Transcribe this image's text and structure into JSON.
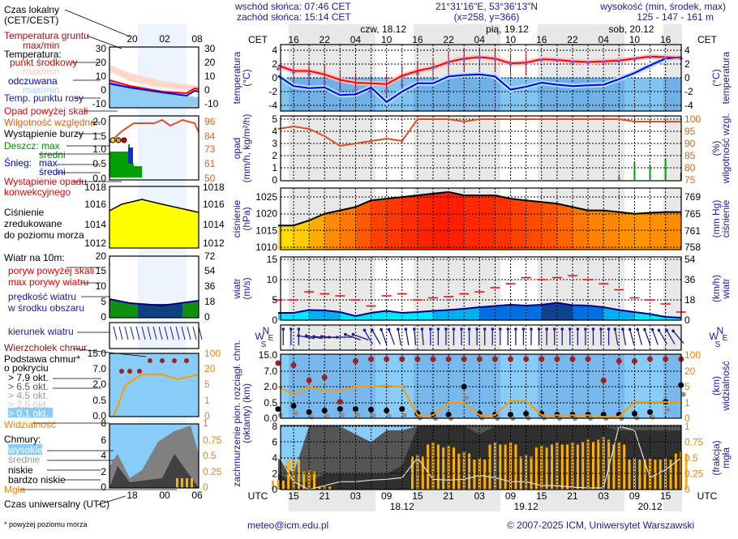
{
  "header": {
    "sunrise": "wschód słońca: 07:46 CET",
    "sunset": "zachód słońca: 15:14 CET",
    "coords": "21°31'16\"E, 53°36'13\"N",
    "grid_point": "(x=258,  y=366)",
    "elevation_label": "wysokość (min, środek, max)",
    "elevation_values": "125 - 147 - 161 m"
  },
  "time_axis": {
    "cet_label": "CET",
    "utc_label": "UTC",
    "cet_ticks": [
      "16",
      "22",
      "04",
      "10",
      "16",
      "22",
      "04",
      "10",
      "16",
      "22",
      "04",
      "10",
      "16"
    ],
    "utc_ticks": [
      "15",
      "21",
      "03",
      "09",
      "15",
      "21",
      "03",
      "09",
      "15",
      "21",
      "03",
      "09",
      "15"
    ],
    "cet_dates": [
      "czw, 18.12",
      "pią, 19.12",
      "sob, 20.12"
    ],
    "utc_dates": [
      "18.12",
      "19.12",
      "20.12"
    ]
  },
  "legend": {
    "local_time": "Czas lokalny",
    "local_time_2": "(CET/CEST)",
    "local_ticks": [
      "20",
      "02",
      "08"
    ],
    "ground_temp": "Temperatura gruntu",
    "ground_temp_2": "max/min",
    "temperature": "Temperatura:",
    "midpoint": "punkt środkowy",
    "midpoint_range": "max/min",
    "perceived": "odczuwana",
    "perceived_range": "max/min",
    "dew_point": "Temp. punktu rosy",
    "temp_ticks": [
      "30",
      "20",
      "10",
      "0",
      "-10"
    ],
    "precip_over_scale": "Opad powyżej skali",
    "humidity": "Wilgotność względna",
    "storm": "Wystąpienie burzy",
    "rain_max": "Deszcz: max",
    "rain_avg": "średni",
    "snow": "Śnieg:",
    "snow_max": "max",
    "snow_avg": "średni",
    "convective": "Wystąpienie opadu",
    "convective_2": "konwekcyjnego",
    "precip_ticks": [
      "2.0",
      "1.5",
      "1.0",
      "0.5",
      "0.0"
    ],
    "humidity_ticks": [
      "96",
      "84",
      "73",
      "61",
      "50"
    ],
    "pressure": "Ciśnienie",
    "pressure_2": "zredukowane",
    "pressure_3": "do poziomu morza",
    "pressure_ticks": [
      "1018",
      "1016",
      "1014",
      "1012"
    ],
    "wind": "Wiatr na 10m:",
    "gust_over_scale": "poryw powyżej skali",
    "gust_max": "max porywy wiatru",
    "wind_speed": "prędkość wiatru",
    "wind_speed_2": "w środku obszaru",
    "wind_ticks": [
      "20",
      "15",
      "10",
      "5",
      "0"
    ],
    "wind_kmh_ticks": [
      "72",
      "54",
      "36",
      "18",
      "0"
    ],
    "wind_dir": "kierunek wiatru",
    "cloud_top": "Wierzchołek chmur",
    "cloud_base": "Podstawa chmur*",
    "cloud_base_2": "o pokryciu",
    "okt": [
      "> 7.9 okt.",
      "> 6.5 okt.",
      "> 4.5 okt.",
      "> 2.5 okt.",
      "> 0.1 okt."
    ],
    "base_ticks": [
      "15.0",
      "7.0",
      "2.0",
      "0.5",
      "0.0"
    ],
    "vis_ticks": [
      "100",
      "20",
      "5",
      "1",
      "0"
    ],
    "visibility": "Widzialność",
    "clouds": "Chmury:",
    "cloud_high": "wysokie",
    "cloud_mid": "średnie",
    "cloud_low": "niskie",
    "cloud_vlow": "bardzo niskie",
    "fog": "Mgła",
    "cover_ticks": [
      "8",
      "6",
      "4",
      "2",
      "0"
    ],
    "fog_ticks": [
      "1",
      "0.75",
      "0.5",
      "0.25",
      "0"
    ],
    "utc_ticks": [
      "18",
      "00",
      "06"
    ],
    "utc_time": "Czas uniwersalny (UTC)",
    "footnote": "* powyżej poziomu morza"
  },
  "axes": {
    "temp_left": [
      "temperatura",
      "(°C)"
    ],
    "temp_right": [
      "(°C)",
      "temperatura"
    ],
    "precip_left": [
      "opad",
      "(mm/h, kg/m²/h)"
    ],
    "precip_right": [
      "(%)",
      "wilgotność wzgl."
    ],
    "pressure_left": [
      "ciśnienie",
      "(hPa)"
    ],
    "pressure_right": [
      "(mm Hg)",
      "ciśnienie"
    ],
    "wind_left": [
      "wiatr",
      "(m/s)"
    ],
    "wind_right": [
      "(km/h)",
      "wiatr"
    ],
    "cloud_left": [
      "zachmurzenie  pion. rozciągł. chm.",
      "(oktanty)         (km)"
    ],
    "cloud_right_base": [
      "(km)",
      "widzialność"
    ],
    "cloud_right_fog": [
      "(frakcja)",
      "mgła"
    ],
    "compass": [
      "N",
      "W",
      "E",
      "S"
    ]
  },
  "footer": {
    "email": "meteo@icm.edu.pl",
    "copyright": "© 2007-2025 ICM, Uniwersytet Warszawski"
  },
  "colors": {
    "temperature": "#ff0000",
    "perceived": "#0000e0",
    "dew_point": "#7060e0",
    "humidity": "#e05020",
    "pressure_line": "#000000",
    "gust": "#ff0000",
    "wind_speed": "#00008c",
    "cloud_top": "#a02020",
    "visibility": "#ff9900",
    "fog": "#ffb000",
    "night_band": "#e8e8e8"
  },
  "chart_data": {
    "type": "line",
    "x_utc": [
      "17.12 12",
      "17.12 15",
      "17.12 18",
      "17.12 21",
      "18.12 00",
      "18.12 03",
      "18.12 06",
      "18.12 09",
      "18.12 12",
      "18.12 15",
      "18.12 18",
      "18.12 21",
      "19.12 00",
      "19.12 03",
      "19.12 06",
      "19.12 09",
      "19.12 12",
      "19.12 15",
      "19.12 18",
      "19.12 21",
      "20.12 00",
      "20.12 03",
      "20.12 06",
      "20.12 09",
      "20.12 12",
      "20.12 15",
      "20.12 18"
    ],
    "panels": [
      {
        "name": "temperature",
        "ylim": [
          -4.8,
          4.5
        ],
        "ticks": [
          4,
          2,
          0,
          -2,
          -4
        ],
        "series": [
          {
            "name": "punkt środkowy",
            "values": [
              1.8,
              1.0,
              1.0,
              0.5,
              -0.3,
              -0.7,
              -0.8,
              -0.9,
              0.3,
              1.0,
              1.5,
              2.3,
              2.8,
              3.0,
              2.8,
              2.1,
              2.2,
              2.7,
              2.6,
              2.4,
              2.3,
              2.4,
              2.5,
              2.8,
              3.1,
              3.0,
              2.9
            ]
          },
          {
            "name": "odczuwana",
            "values": [
              0.3,
              -1.2,
              -1.5,
              -1.4,
              -2.5,
              -2.4,
              -1.4,
              -3.5,
              -2.0,
              -0.8,
              -0.8,
              0.2,
              0.4,
              0.5,
              0.2,
              -1.7,
              -1.3,
              -0.7,
              -1.0,
              -1.2,
              -1.1,
              -1.0,
              -0.2,
              0.7,
              1.8,
              2.8,
              3.0
            ]
          },
          {
            "name": "Temp. punktu rosy",
            "values": [
              1.3,
              0.8,
              0.5,
              -0.7,
              -1.8,
              -1.8,
              -1.8,
              -1.8,
              -1.0,
              0.6,
              1.5,
              2.2,
              2.7,
              2.9,
              2.7,
              2.0,
              2.1,
              2.6,
              2.5,
              2.3,
              2.2,
              2.3,
              2.4,
              2.7,
              3.0,
              2.9,
              2.8
            ]
          }
        ]
      },
      {
        "name": "precipitation",
        "ylim": [
          0,
          5
        ],
        "ticks": [
          5,
          4,
          3,
          2,
          1,
          0
        ],
        "humidity_ylim": [
          75,
          100
        ],
        "humidity_ticks": [
          100,
          95,
          90,
          85,
          80,
          75
        ],
        "humidity": [
          96,
          97,
          96,
          93,
          89,
          90,
          91,
          92,
          91,
          100,
          100,
          100,
          99,
          100,
          100,
          100,
          100,
          100,
          100,
          100,
          100,
          100,
          100,
          99,
          99,
          99,
          99
        ],
        "rain": [
          0,
          0,
          0,
          0,
          0,
          0,
          0,
          0,
          0,
          0,
          0,
          0,
          0,
          0,
          0,
          0,
          0,
          0,
          0,
          0,
          0,
          0,
          0.3,
          1.4,
          1.2,
          1.7,
          0.6
        ]
      },
      {
        "name": "pressure",
        "ylim": [
          1009.5,
          1027.8
        ],
        "ticks": [
          1025,
          1020,
          1015,
          1010
        ],
        "mmhg_ticks": [
          769,
          765,
          761,
          758
        ],
        "values": [
          1016.5,
          1016.5,
          1018,
          1020,
          1021,
          1022,
          1024,
          1024.5,
          1025,
          1025.5,
          1026,
          1026.5,
          1025.5,
          1025.5,
          1025.5,
          1024.5,
          1024,
          1023.5,
          1023,
          1022,
          1021,
          1021,
          1020.5,
          1020,
          1020.3,
          1020.5,
          1020.5
        ]
      },
      {
        "name": "wind",
        "ylim": [
          0,
          15.5
        ],
        "ticks": [
          15,
          10,
          5,
          0
        ],
        "kmh_ticks": [
          54,
          36,
          18,
          0
        ],
        "speed": [
          1.8,
          1.8,
          2.5,
          2.4,
          2.0,
          1.0,
          1.8,
          2.3,
          1.8,
          2.0,
          2.3,
          2.5,
          2.8,
          3.2,
          3.5,
          3.8,
          3.6,
          3.8,
          4.3,
          3.7,
          3.6,
          3.2,
          2.5,
          2.0,
          1.5,
          0.8,
          0.6
        ],
        "gust": [
          5,
          5,
          7,
          6.5,
          6,
          5,
          3.5,
          6,
          6.5,
          5,
          5.5,
          5.8,
          6.5,
          7,
          8,
          9,
          10.5,
          10,
          10.5,
          11,
          10,
          9,
          7.5,
          5.5,
          5,
          4,
          2
        ]
      },
      {
        "name": "wind_direction",
        "direction_deg": [
          180,
          180,
          100,
          95,
          90,
          110,
          150,
          160,
          170,
          175,
          180,
          180,
          180,
          180,
          180,
          180,
          180,
          180,
          180,
          180,
          180,
          180,
          170,
          165,
          160,
          150,
          140
        ]
      },
      {
        "name": "cloud_base",
        "ticks": [
          "15.0",
          "7.0",
          "2.0",
          "0.5",
          "0.0"
        ],
        "vis_ticks": [
          "100",
          "20",
          "5",
          "1",
          "0"
        ],
        "cloud_top_km": [
          11,
          10,
          4,
          5,
          0.6,
          12,
          13,
          13,
          13,
          13,
          13,
          13,
          13,
          13,
          13,
          13,
          13,
          13,
          13,
          13,
          13,
          4,
          12,
          12,
          13,
          13,
          13
        ],
        "cloud_base_km": [
          0.3,
          0.4,
          0.2,
          0.25,
          0.3,
          0.3,
          0.28,
          0.25,
          0.3,
          0.15,
          0.12,
          0.12,
          2.0,
          0.15,
          0.12,
          0.12,
          0.15,
          0.15,
          0.12,
          0.12,
          0.12,
          0.12,
          0.12,
          0.15,
          0.2,
          0.6,
          2.5
        ],
        "visibility_km": [
          5,
          3,
          5,
          4,
          4,
          5,
          5,
          6,
          5,
          0.2,
          0.2,
          1,
          1,
          0.2,
          0.2,
          1.5,
          1.5,
          0.2,
          0.2,
          0.2,
          0.2,
          0.1,
          0.1,
          1.2,
          1.2,
          1.2,
          1.0
        ]
      },
      {
        "name": "cloud_cover",
        "ylim": [
          0,
          8
        ],
        "ticks": [
          8,
          6,
          4,
          2,
          0
        ],
        "fog_ticks": [
          1,
          0.75,
          0.5,
          0.25,
          0
        ],
        "low_okt": [
          4,
          2,
          8,
          8,
          8,
          7,
          6,
          7.5,
          7.5,
          8,
          8,
          8,
          8,
          8,
          8,
          8,
          8,
          8,
          8,
          8,
          8,
          8,
          8,
          8,
          8,
          8,
          8
        ],
        "very_low_okt": [
          2,
          1,
          1,
          2,
          2,
          2,
          2,
          2,
          3,
          8,
          8,
          8,
          8,
          7,
          8,
          8,
          8,
          8,
          8,
          8,
          8,
          8,
          7.5,
          7.5,
          7.5,
          7.5,
          7.5
        ],
        "high_line_okt": [
          4.5,
          1,
          0,
          0.5,
          1,
          1,
          1.2,
          1.3,
          1.5,
          4,
          1.3,
          1.2,
          1.3,
          1.8,
          1.5,
          1.0,
          1.0,
          0.5,
          0.5,
          0.3,
          0.2,
          0.2,
          8,
          7.5,
          1.5,
          2.5,
          4
        ],
        "fog_fraction": [
          0.15,
          0.5,
          0.3,
          0.05,
          0,
          0,
          0,
          0,
          0,
          0.55,
          0.75,
          0.7,
          0.6,
          0.5,
          0.75,
          0.75,
          0.55,
          0.7,
          0.75,
          0.75,
          0.8,
          0.83,
          0.75,
          0.5,
          0.5,
          0.5,
          0.6
        ]
      }
    ]
  }
}
